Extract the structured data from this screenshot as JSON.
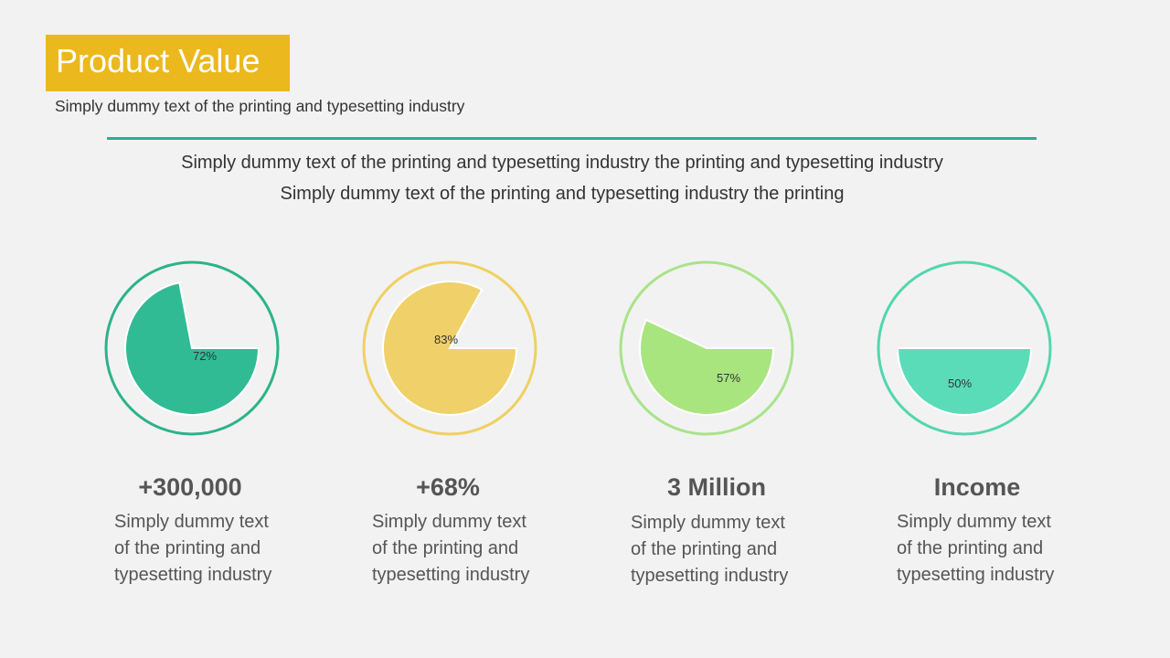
{
  "header": {
    "title": "Product Value",
    "subtitle": "Simply dummy text of the printing and typesetting industry"
  },
  "intro": {
    "line1": "Simply dummy text of the printing and typesetting industry the printing and typesetting industry",
    "line2": "Simply dummy text of the printing and typesetting industry the printing"
  },
  "colors": {
    "title_bg": "#ebb81e",
    "rule": "#2bae8e"
  },
  "chart_data": [
    {
      "type": "pie",
      "value": 72,
      "label": "72%",
      "color": "#31bb95",
      "ring": "#2bb38a"
    },
    {
      "type": "pie",
      "value": 83,
      "label": "83%",
      "color": "#f0d068",
      "ring": "#efd060"
    },
    {
      "type": "pie",
      "value": 57,
      "label": "57%",
      "color": "#a8e57f",
      "ring": "#a8e38a"
    },
    {
      "type": "pie",
      "value": 50,
      "label": "50%",
      "color": "#5adcb8",
      "ring": "#52d6ae"
    }
  ],
  "stats": [
    {
      "title": "+300,000",
      "desc": [
        "Simply dummy text",
        "of the printing and",
        "typesetting industry"
      ]
    },
    {
      "title": "+68%",
      "desc": [
        "Simply dummy text",
        "of the printing and",
        "typesetting industry"
      ]
    },
    {
      "title": "3 Million",
      "desc": [
        "Simply dummy text",
        "of the printing and",
        "typesetting industry"
      ]
    },
    {
      "title": "Income",
      "desc": [
        "Simply dummy text",
        "of the printing and",
        "typesetting industry"
      ]
    }
  ]
}
